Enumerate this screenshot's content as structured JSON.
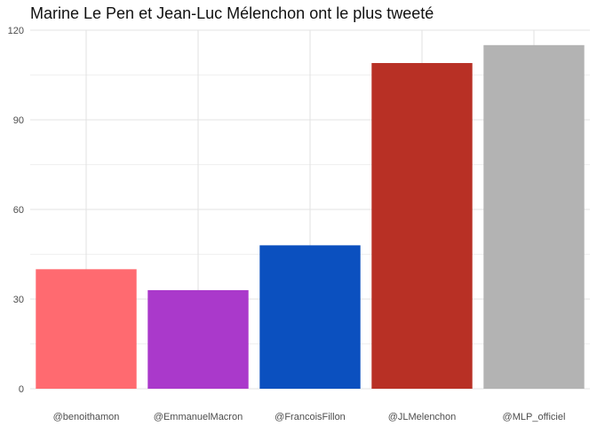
{
  "chart_data": {
    "type": "bar",
    "title": "Marine Le Pen et Jean-Luc Mélenchon ont le plus tweeté",
    "xlabel": "",
    "ylabel": "",
    "categories": [
      "@benoithamon",
      "@EmmanuelMacron",
      "@FrancoisFillon",
      "@JLMelenchon",
      "@MLP_officiel"
    ],
    "values": [
      40,
      33,
      48,
      109,
      115
    ],
    "colors": [
      "#ff6a70",
      "#aa39cb",
      "#0b50bf",
      "#b83025",
      "#b3b3b3"
    ],
    "ylim": [
      0,
      120
    ],
    "yticks": [
      0,
      30,
      60,
      90,
      120
    ],
    "grid": true,
    "legend": "none"
  }
}
